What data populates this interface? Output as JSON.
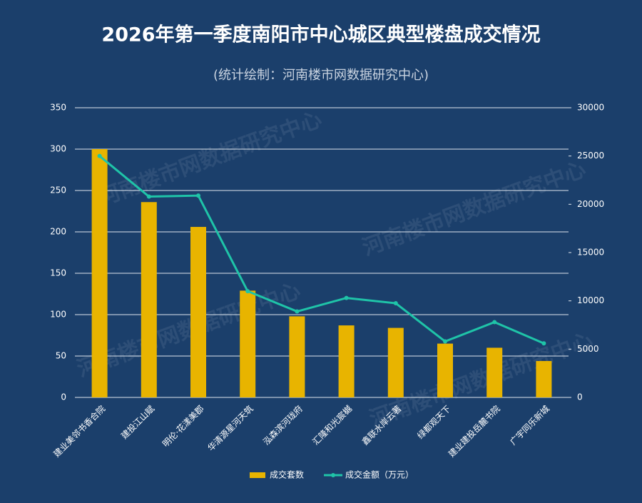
{
  "chart_data": {
    "type": "bar_line",
    "title": "2026年第一季度南阳市中心城区典型楼盘成交情况",
    "subtitle": "(统计绘制：河南楼市网数据研究中心)",
    "watermark": "河南楼市网数据研究中心",
    "categories": [
      "建业美邻书香合院",
      "建投江山赋",
      "明伦·花漾美郡",
      "华清源星河天筑",
      "泓森滨河珑府",
      "汇隆和光宸樾",
      "鑫联水岸云著",
      "绿都观天下",
      "建业建投岳麓书院",
      "广宇同乐新城"
    ],
    "series": [
      {
        "name": "成交套数",
        "type": "bar",
        "color": "#e8b400",
        "values": [
          300,
          236,
          206,
          129,
          98,
          87,
          84,
          65,
          60,
          44
        ]
      },
      {
        "name": "成交金额（万元）",
        "type": "line",
        "axis": "y2",
        "color": "#1fc4a8",
        "values": [
          25000,
          20800,
          20900,
          11000,
          8900,
          10300,
          9750,
          5800,
          7800,
          5600
        ]
      }
    ],
    "ylim": [
      0,
      350
    ],
    "yticks": [
      0,
      50,
      100,
      150,
      200,
      250,
      300,
      350
    ],
    "y2lim": [
      0,
      30000
    ],
    "y2ticks": [
      0,
      5000,
      10000,
      15000,
      20000,
      25000,
      30000
    ],
    "grid": true,
    "legend": "bottom"
  }
}
